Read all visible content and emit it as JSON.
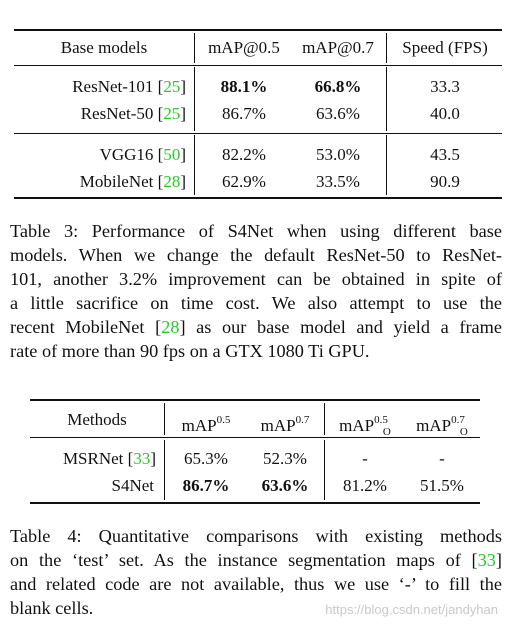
{
  "table3": {
    "headers": [
      "Base models",
      "mAP@0.5",
      "mAP@0.7",
      "Speed (FPS)"
    ],
    "rows": [
      {
        "name": "ResNet-101",
        "ref": "25",
        "v1": "88.1%",
        "v2": "66.8%",
        "v3": "33.3"
      },
      {
        "name": "ResNet-50",
        "ref": "25",
        "v1": "86.7%",
        "v2": "63.6%",
        "v3": "40.0"
      },
      {
        "name": "VGG16",
        "ref": "50",
        "v1": "82.2%",
        "v2": "53.0%",
        "v3": "43.5"
      },
      {
        "name": "MobileNet",
        "ref": "28",
        "v1": "62.9%",
        "v2": "33.5%",
        "v3": "90.9"
      }
    ],
    "caption": {
      "l1": "Table 3: Performance of S4Net when using different base",
      "l2": "models. When we change the default ResNet-50 to ResNet-",
      "l3": "101, another 3.2% improvement can be obtained in spite of",
      "l4": "a little sacrifice on time cost. We also attempt to use the",
      "l5a": "recent MobileNet [",
      "l5ref": "28",
      "l5b": "] as our base model and yield a frame",
      "l6": "rate of more than 90 fps on a GTX 1080 Ti GPU."
    }
  },
  "table4": {
    "headers": {
      "methods": "Methods",
      "map": "mAP",
      "sup05": "0.5",
      "sup07": "0.7",
      "subO": "O"
    },
    "rows": [
      {
        "name": "MSRNet",
        "ref": "33",
        "v1": "65.3%",
        "v2": "52.3%",
        "v3": "-",
        "v4": "-"
      },
      {
        "name": "S4Net",
        "ref": "",
        "v1": "86.7%",
        "v2": "63.6%",
        "v3": "81.2%",
        "v4": "51.5%"
      }
    ],
    "caption": {
      "l1": "Table 4: Quantitative comparisons with existing methods",
      "l2": "on the ‘test’ set. As the instance segmentation maps of [",
      "l2ref": "33",
      "l2b": "]",
      "l3": "and related code are not available, thus we use ‘-’ to fill the",
      "l4": "blank cells."
    }
  },
  "watermark": "https://blog.csdn.net/jandyhan"
}
